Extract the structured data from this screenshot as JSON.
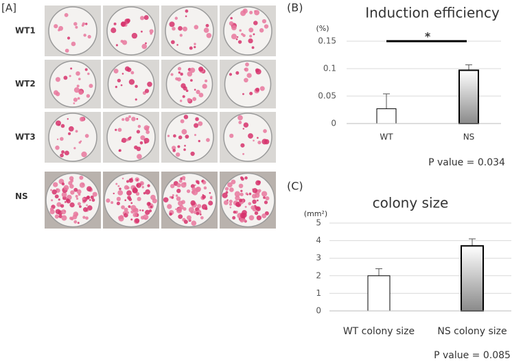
{
  "panel_a": {
    "label": "[A]",
    "rows": [
      "WT1",
      "WT2",
      "WT3",
      "NS"
    ]
  },
  "chart_data": [
    {
      "type": "bar",
      "panel_label": "(B)",
      "title": "Induction efficiency",
      "unit_label": "(%)",
      "categories": [
        "WT",
        "NS"
      ],
      "values": [
        0.027,
        0.097
      ],
      "errors": [
        0.027,
        0.01
      ],
      "colors": [
        "#ffffff",
        "#8a8a8a"
      ],
      "ylim": [
        0,
        0.15
      ],
      "yticks": [
        0,
        0.05,
        0.1,
        0.15
      ],
      "grid": true,
      "significance": "*",
      "annotation": "P value = 0.034"
    },
    {
      "type": "bar",
      "panel_label": "(C)",
      "title": "colony size",
      "unit_label": "(mm²)",
      "categories": [
        "WT colony size",
        "NS colony size"
      ],
      "values": [
        2.0,
        3.7
      ],
      "errors": [
        0.4,
        0.4
      ],
      "colors": [
        "#ffffff",
        "#8a8a8a"
      ],
      "ylim": [
        0,
        5
      ],
      "yticks": [
        0,
        1,
        2,
        3,
        4,
        5
      ],
      "grid": true,
      "annotation": "P value = 0.085"
    }
  ]
}
